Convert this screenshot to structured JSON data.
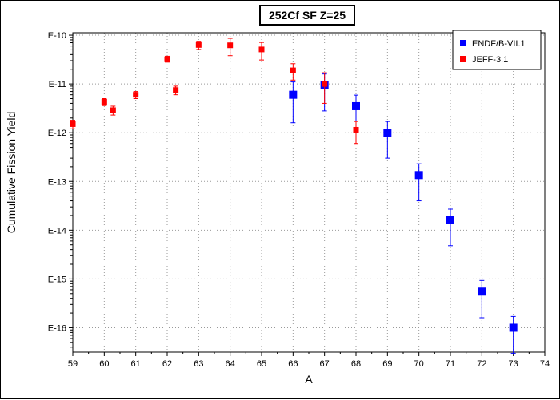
{
  "chart_data": {
    "type": "scatter",
    "title": "252Cf SF Z=25",
    "xlabel": "A",
    "ylabel": "Cumulative Fission Yield",
    "xlim": [
      59,
      74
    ],
    "ylim_exponent": [
      -16.5,
      -9.95
    ],
    "y_scale": "log",
    "grid": true,
    "legend_position": "top-right",
    "x_ticks": [
      59,
      60,
      61,
      62,
      63,
      64,
      65,
      66,
      67,
      68,
      69,
      70,
      71,
      72,
      73,
      74
    ],
    "y_ticks": [
      {
        "exp": -10,
        "label": "E-10"
      },
      {
        "exp": -11,
        "label": "E-11"
      },
      {
        "exp": -12,
        "label": "E-12"
      },
      {
        "exp": -13,
        "label": "E-13"
      },
      {
        "exp": -14,
        "label": "E-14"
      },
      {
        "exp": -15,
        "label": "E-15"
      },
      {
        "exp": -16,
        "label": "E-16"
      }
    ],
    "series": [
      {
        "name": "ENDF/B-VII.1",
        "color": "#0000ff",
        "marker": "square-large",
        "points": [
          {
            "x": 66,
            "y": 6e-12,
            "lo": 1.6e-12,
            "hi": 1.1e-11
          },
          {
            "x": 67,
            "y": 9.5e-12,
            "lo": 2.8e-12,
            "hi": 1.6e-11
          },
          {
            "x": 68,
            "y": 3.5e-12,
            "lo": 1e-12,
            "hi": 5.9e-12
          },
          {
            "x": 69,
            "y": 1e-12,
            "lo": 3e-13,
            "hi": 1.7e-12
          },
          {
            "x": 70,
            "y": 1.35e-13,
            "lo": 4e-14,
            "hi": 2.3e-13
          },
          {
            "x": 71,
            "y": 1.6e-14,
            "lo": 4.8e-15,
            "hi": 2.7e-14
          },
          {
            "x": 72,
            "y": 5.5e-16,
            "lo": 1.6e-16,
            "hi": 9.3e-16
          },
          {
            "x": 73,
            "y": 1e-16,
            "lo": 3e-17,
            "hi": 1.7e-16
          }
        ]
      },
      {
        "name": "JEFF-3.1",
        "color": "#ff0000",
        "marker": "square-small",
        "points": [
          {
            "x": 59,
            "y": 1.5e-12,
            "lo": 1.2e-12,
            "hi": 1.8e-12
          },
          {
            "x": 60,
            "y": 4.3e-12,
            "lo": 3.6e-12,
            "hi": 5e-12
          },
          {
            "x": 60.28,
            "y": 2.9e-12,
            "lo": 2.3e-12,
            "hi": 3.5e-12
          },
          {
            "x": 61,
            "y": 6e-12,
            "lo": 5e-12,
            "hi": 7e-12
          },
          {
            "x": 62,
            "y": 3.2e-11,
            "lo": 2.8e-11,
            "hi": 3.7e-11
          },
          {
            "x": 62.27,
            "y": 7.5e-12,
            "lo": 6e-12,
            "hi": 9e-12
          },
          {
            "x": 63,
            "y": 6.3e-11,
            "lo": 5.1e-11,
            "hi": 7.5e-11
          },
          {
            "x": 64,
            "y": 6.2e-11,
            "lo": 3.8e-11,
            "hi": 8.6e-11
          },
          {
            "x": 65,
            "y": 5.1e-11,
            "lo": 3.1e-11,
            "hi": 7.1e-11
          },
          {
            "x": 66,
            "y": 1.9e-11,
            "lo": 1.2e-11,
            "hi": 2.6e-11
          },
          {
            "x": 67,
            "y": 1e-11,
            "lo": 4e-12,
            "hi": 1.7e-11
          },
          {
            "x": 68,
            "y": 1.15e-12,
            "lo": 6e-13,
            "hi": 1.7e-12
          }
        ]
      }
    ]
  }
}
